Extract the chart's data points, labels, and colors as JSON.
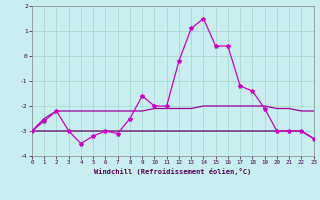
{
  "xlabel": "Windchill (Refroidissement éolien,°C)",
  "xlim": [
    0,
    23
  ],
  "ylim": [
    -4,
    2
  ],
  "yticks": [
    -4,
    -3,
    -2,
    -1,
    0,
    1,
    2
  ],
  "xticks": [
    0,
    1,
    2,
    3,
    4,
    5,
    6,
    7,
    8,
    9,
    10,
    11,
    12,
    13,
    14,
    15,
    16,
    17,
    18,
    19,
    20,
    21,
    22,
    23
  ],
  "bg_color": "#c8eef0",
  "grid_color": "#a8d8d0",
  "color_main": "#cc00cc",
  "color_flat1": "#990099",
  "color_flat2": "#660066",
  "series1_x": [
    0,
    1,
    2,
    3,
    4,
    5,
    6,
    7,
    8,
    9,
    10,
    11,
    12,
    13,
    14,
    15,
    16,
    17,
    18,
    19,
    20,
    21,
    22,
    23
  ],
  "series1_y": [
    -3.0,
    -2.6,
    -2.2,
    -3.0,
    -3.5,
    -3.2,
    -3.0,
    -3.1,
    -2.5,
    -1.6,
    -2.0,
    -2.0,
    -0.2,
    1.1,
    1.5,
    0.4,
    0.4,
    -1.2,
    -1.4,
    -2.1,
    -3.0,
    -3.0,
    -3.0,
    -3.3
  ],
  "series2_x": [
    0,
    1,
    2,
    3,
    4,
    5,
    6,
    7,
    8,
    9,
    10,
    11,
    12,
    13,
    14,
    15,
    16,
    17,
    18,
    19,
    20,
    21,
    22,
    23
  ],
  "series2_y": [
    -3.0,
    -2.5,
    -2.2,
    -2.2,
    -2.2,
    -2.2,
    -2.2,
    -2.2,
    -2.2,
    -2.2,
    -2.1,
    -2.1,
    -2.1,
    -2.1,
    -2.0,
    -2.0,
    -2.0,
    -2.0,
    -2.0,
    -2.0,
    -2.1,
    -2.1,
    -2.2,
    -2.2
  ],
  "series3_x": [
    0,
    1,
    2,
    3,
    4,
    5,
    6,
    7,
    8,
    9,
    10,
    11,
    12,
    13,
    14,
    15,
    16,
    17,
    18,
    19,
    20,
    21,
    22,
    23
  ],
  "series3_y": [
    -3.0,
    -3.0,
    -3.0,
    -3.0,
    -3.0,
    -3.0,
    -3.0,
    -3.0,
    -3.0,
    -3.0,
    -3.0,
    -3.0,
    -3.0,
    -3.0,
    -3.0,
    -3.0,
    -3.0,
    -3.0,
    -3.0,
    -3.0,
    -3.0,
    -3.0,
    -3.0,
    -3.3
  ]
}
